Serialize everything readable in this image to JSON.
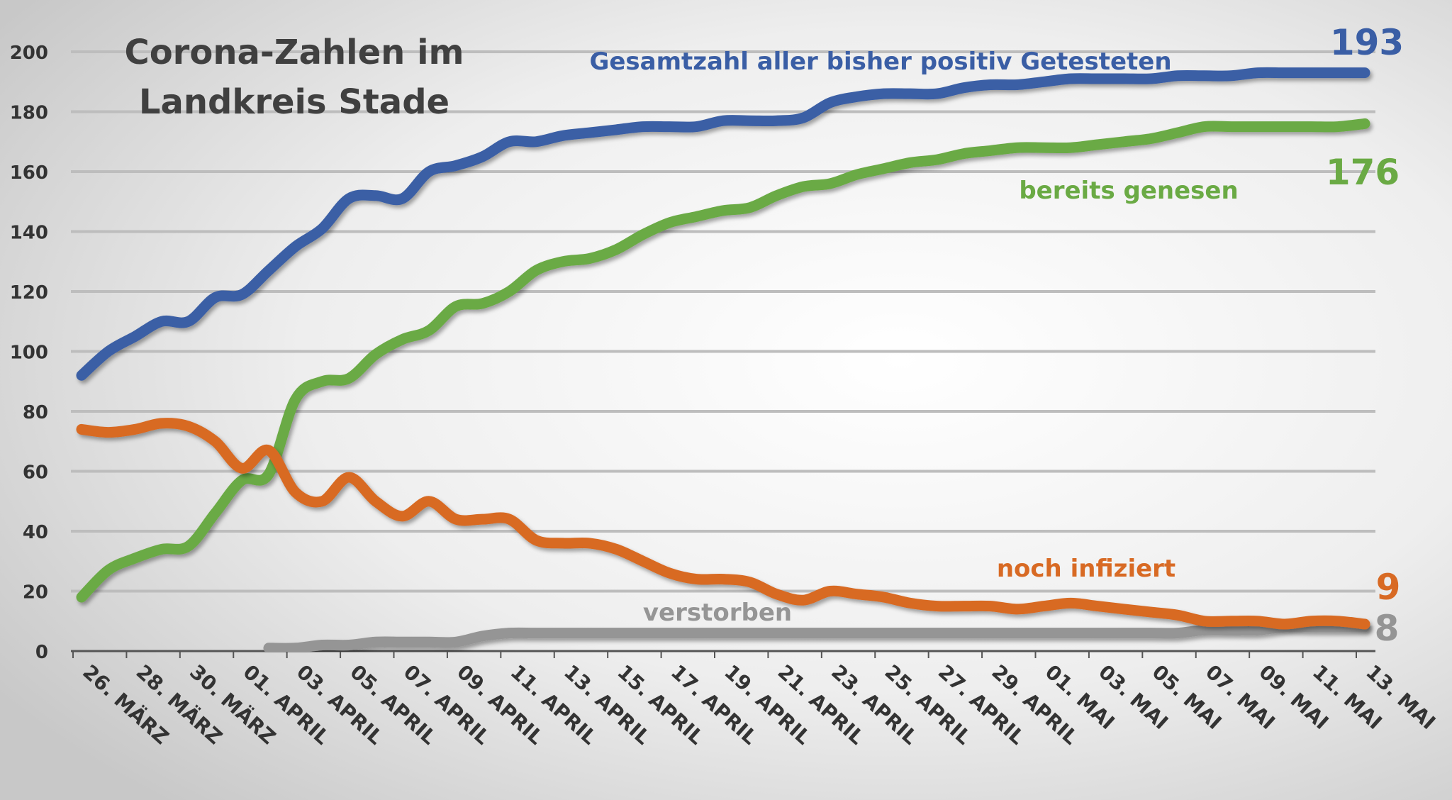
{
  "chart_data": {
    "type": "line",
    "title_lines": [
      "Corona-Zahlen im",
      "Landkreis Stade"
    ],
    "xlabel": "",
    "ylabel": "",
    "ylim": [
      0,
      200
    ],
    "yticks": [
      0,
      20,
      40,
      60,
      80,
      100,
      120,
      140,
      160,
      180,
      200
    ],
    "grid": true,
    "x_tick_labels": [
      "26. MÄRZ",
      "28. MÄRZ",
      "30. MÄRZ",
      "01. APRIL",
      "03. APRIL",
      "05. APRIL",
      "07. APRIL",
      "09. APRIL",
      "11. APRIL",
      "13. APRIL",
      "15. APRIL",
      "17. APRIL",
      "19. APRIL",
      "21. APRIL",
      "23. APRIL",
      "25. APRIL",
      "27. APRIL",
      "29. APRIL",
      "01. MAI",
      "03. MAI",
      "05. MAI",
      "07. MAI",
      "09. MAI",
      "11. MAI",
      "13. MAI"
    ],
    "x": [
      "26. MÄRZ",
      "27. MÄRZ",
      "28. MÄRZ",
      "29. MÄRZ",
      "30. MÄRZ",
      "31. MÄRZ",
      "01. APRIL",
      "02. APRIL",
      "03. APRIL",
      "04. APRIL",
      "05. APRIL",
      "06. APRIL",
      "07. APRIL",
      "08. APRIL",
      "09. APRIL",
      "10. APRIL",
      "11. APRIL",
      "12. APRIL",
      "13. APRIL",
      "14. APRIL",
      "15. APRIL",
      "16. APRIL",
      "17. APRIL",
      "18. APRIL",
      "19. APRIL",
      "20. APRIL",
      "21. APRIL",
      "22. APRIL",
      "23. APRIL",
      "24. APRIL",
      "25. APRIL",
      "26. APRIL",
      "27. APRIL",
      "28. APRIL",
      "29. APRIL",
      "30. APRIL",
      "01. MAI",
      "02. MAI",
      "03. MAI",
      "04. MAI",
      "05. MAI",
      "06. MAI",
      "07. MAI",
      "08. MAI",
      "09. MAI",
      "10. MAI",
      "11. MAI",
      "12. MAI",
      "13. MAI"
    ],
    "series": [
      {
        "name": "Gesamtzahl aller bisher positiv Getesteten",
        "color": "#3a5ea5",
        "end_label": "193",
        "values": [
          92,
          100,
          105,
          110,
          110,
          118,
          119,
          127,
          135,
          141,
          151,
          152,
          151,
          160,
          162,
          165,
          170,
          170,
          172,
          173,
          174,
          175,
          175,
          175,
          177,
          177,
          177,
          178,
          183,
          185,
          186,
          186,
          186,
          188,
          189,
          189,
          190,
          191,
          191,
          191,
          191,
          192,
          192,
          192,
          193,
          193,
          193,
          193,
          193
        ]
      },
      {
        "name": "bereits genesen",
        "color": "#6aaa44",
        "end_label": "176",
        "values": [
          18,
          27,
          31,
          34,
          35,
          46,
          57,
          59,
          84,
          90,
          91,
          99,
          104,
          107,
          115,
          116,
          120,
          127,
          130,
          131,
          134,
          139,
          143,
          145,
          147,
          148,
          152,
          155,
          156,
          159,
          161,
          163,
          164,
          166,
          167,
          168,
          168,
          168,
          169,
          170,
          171,
          173,
          175,
          175,
          175,
          175,
          175,
          175,
          176
        ]
      },
      {
        "name": "noch infiziert",
        "color": "#d86a24",
        "end_label": "9",
        "values": [
          74,
          73,
          74,
          76,
          75,
          70,
          61,
          67,
          53,
          50,
          58,
          50,
          45,
          50,
          44,
          44,
          44,
          37,
          36,
          36,
          34,
          30,
          26,
          24,
          24,
          23,
          19,
          17,
          20,
          19,
          18,
          16,
          15,
          15,
          15,
          14,
          15,
          16,
          15,
          14,
          13,
          12,
          10,
          10,
          10,
          9,
          10,
          10,
          9
        ]
      },
      {
        "name": "verstorben",
        "color": "#959595",
        "end_label": "8",
        "values": [
          null,
          null,
          null,
          null,
          null,
          null,
          null,
          1,
          1,
          2,
          2,
          3,
          3,
          3,
          3,
          5,
          6,
          6,
          6,
          6,
          6,
          6,
          6,
          6,
          6,
          6,
          6,
          6,
          6,
          6,
          6,
          6,
          6,
          6,
          6,
          6,
          6,
          6,
          6,
          6,
          6,
          6,
          7,
          7,
          7,
          8,
          8,
          8,
          8
        ]
      }
    ]
  }
}
